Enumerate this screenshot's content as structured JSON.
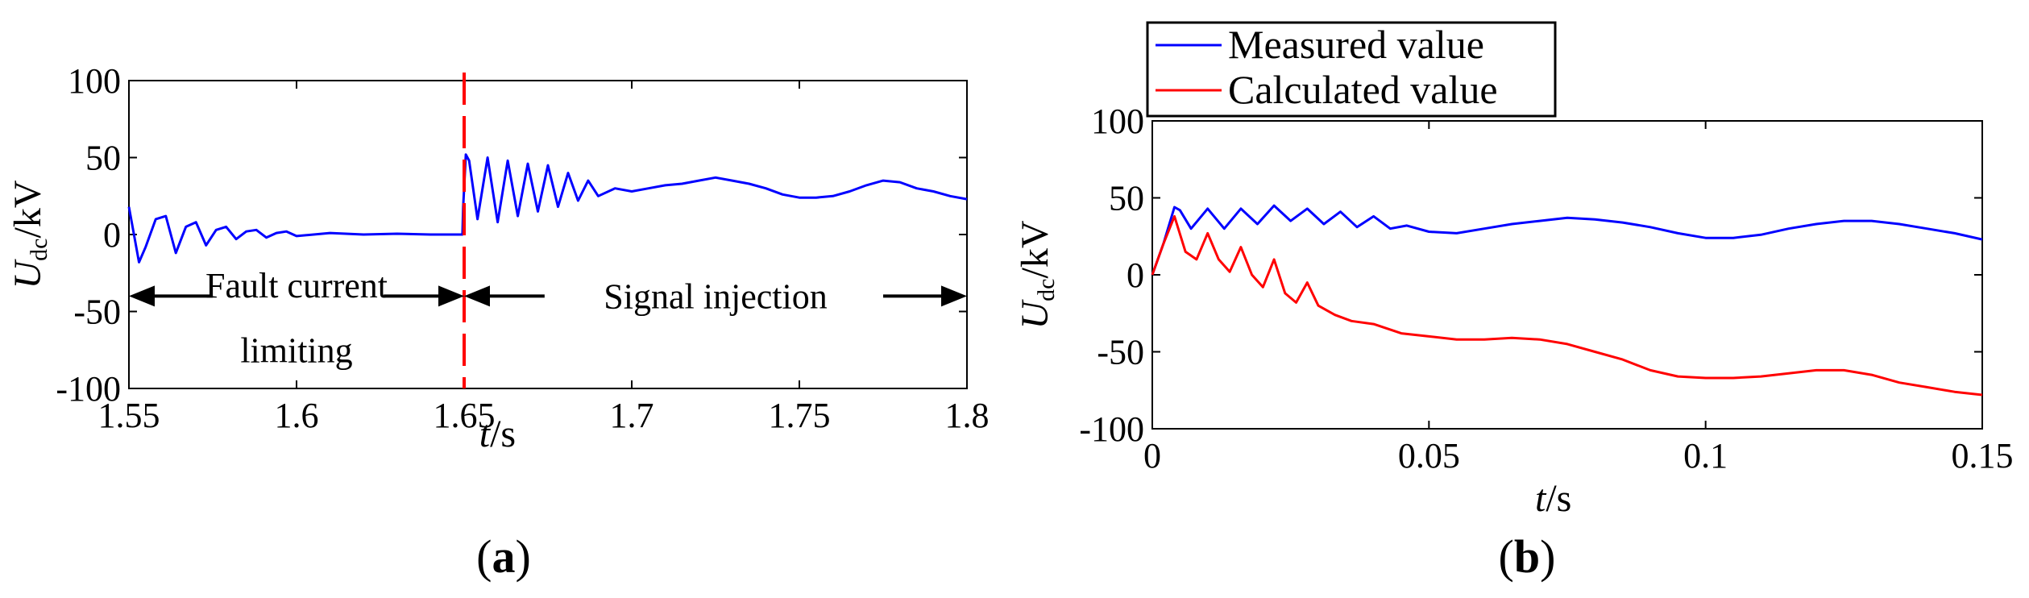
{
  "chart_data": [
    {
      "type": "line",
      "caption": "(a)",
      "xlabel": "t/s",
      "ylabel": "Udc/kV",
      "xlim": [
        1.55,
        1.8
      ],
      "ylim": [
        -100,
        100
      ],
      "x_ticks": [
        1.55,
        1.6,
        1.65,
        1.7,
        1.75,
        1.8
      ],
      "x_tick_labels": [
        "1.55",
        "1.6",
        "1.65",
        "1.7",
        "1.75",
        "1.8"
      ],
      "y_ticks": [
        100,
        50,
        0,
        -50,
        -100
      ],
      "y_tick_labels": [
        "100",
        "50",
        "0",
        "-50",
        "-100"
      ],
      "grid": false,
      "series": [
        {
          "color": "#0000ff",
          "x": [
            1.55,
            1.553,
            1.555,
            1.558,
            1.561,
            1.564,
            1.567,
            1.57,
            1.573,
            1.576,
            1.579,
            1.582,
            1.585,
            1.588,
            1.591,
            1.594,
            1.597,
            1.6,
            1.61,
            1.62,
            1.63,
            1.64,
            1.6495,
            1.6497,
            1.6505,
            1.6515,
            1.654,
            1.657,
            1.66,
            1.663,
            1.666,
            1.669,
            1.672,
            1.675,
            1.678,
            1.681,
            1.684,
            1.687,
            1.69,
            1.695,
            1.7,
            1.705,
            1.71,
            1.715,
            1.72,
            1.725,
            1.73,
            1.735,
            1.74,
            1.745,
            1.75,
            1.755,
            1.76,
            1.765,
            1.77,
            1.775,
            1.78,
            1.785,
            1.79,
            1.795,
            1.8
          ],
          "y": [
            18,
            -18,
            -8,
            10,
            12,
            -12,
            5,
            8,
            -7,
            3,
            5,
            -3,
            2,
            3,
            -2,
            1,
            2,
            -1,
            1,
            0,
            0.5,
            0,
            0,
            18,
            52,
            48,
            10,
            50,
            8,
            48,
            12,
            46,
            15,
            45,
            18,
            40,
            22,
            35,
            25,
            30,
            28,
            30,
            32,
            33,
            35,
            37,
            35,
            33,
            30,
            26,
            24,
            24,
            25,
            28,
            32,
            35,
            34,
            30,
            28,
            25,
            23
          ]
        }
      ],
      "annotations": [
        {
          "text": "Fault current",
          "x": 1.6,
          "y": -33
        },
        {
          "text": "limiting",
          "x": 1.6,
          "y": -75
        },
        {
          "text": "Signal injection",
          "x": 1.725,
          "y": -40
        }
      ],
      "arrows": [
        {
          "from_x": 1.575,
          "to_x": 1.55,
          "y": -40
        },
        {
          "from_x": 1.626,
          "to_x": 1.65,
          "y": -40
        },
        {
          "from_x": 1.674,
          "to_x": 1.65,
          "y": -40
        },
        {
          "from_x": 1.775,
          "to_x": 1.8,
          "y": -40
        }
      ],
      "vertical_marker": {
        "x": 1.65,
        "color": "#ff0000",
        "style": "dashed"
      }
    },
    {
      "type": "line",
      "caption": "(b)",
      "xlabel": "t/s",
      "ylabel": "Udc/kV",
      "xlim": [
        0,
        0.15
      ],
      "ylim": [
        -100,
        100
      ],
      "x_ticks": [
        0,
        0.05,
        0.1,
        0.15
      ],
      "x_tick_labels": [
        "0",
        "0.05",
        "0.1",
        "0.15"
      ],
      "y_ticks": [
        100,
        50,
        0,
        -50,
        -100
      ],
      "y_tick_labels": [
        "100",
        "50",
        "0",
        "-50",
        "-100"
      ],
      "grid": false,
      "legend": {
        "placement": "top-left, above axes"
      },
      "series": [
        {
          "name": "Measured value",
          "color": "#0000ff",
          "x": [
            0,
            0.002,
            0.004,
            0.005,
            0.007,
            0.01,
            0.013,
            0.016,
            0.019,
            0.022,
            0.025,
            0.028,
            0.031,
            0.034,
            0.037,
            0.04,
            0.043,
            0.046,
            0.05,
            0.055,
            0.06,
            0.065,
            0.07,
            0.075,
            0.08,
            0.085,
            0.09,
            0.095,
            0.1,
            0.105,
            0.11,
            0.115,
            0.12,
            0.125,
            0.13,
            0.135,
            0.14,
            0.145,
            0.15
          ],
          "y": [
            0,
            20,
            44,
            42,
            30,
            43,
            30,
            43,
            33,
            45,
            35,
            43,
            33,
            41,
            31,
            38,
            30,
            32,
            28,
            27,
            30,
            33,
            35,
            37,
            36,
            34,
            31,
            27,
            24,
            24,
            26,
            30,
            33,
            35,
            35,
            33,
            30,
            27,
            23
          ]
        },
        {
          "name": "Calculated value",
          "color": "#ff0000",
          "x": [
            0,
            0.002,
            0.004,
            0.006,
            0.008,
            0.01,
            0.012,
            0.014,
            0.016,
            0.018,
            0.02,
            0.022,
            0.024,
            0.026,
            0.028,
            0.03,
            0.033,
            0.036,
            0.04,
            0.045,
            0.05,
            0.055,
            0.06,
            0.065,
            0.07,
            0.075,
            0.08,
            0.085,
            0.09,
            0.095,
            0.1,
            0.105,
            0.11,
            0.115,
            0.12,
            0.125,
            0.13,
            0.135,
            0.14,
            0.145,
            0.15
          ],
          "y": [
            0,
            20,
            38,
            15,
            10,
            27,
            10,
            2,
            18,
            0,
            -8,
            10,
            -12,
            -18,
            -5,
            -20,
            -26,
            -30,
            -32,
            -38,
            -40,
            -42,
            -42,
            -41,
            -42,
            -45,
            -50,
            -55,
            -62,
            -66,
            -67,
            -67,
            -66,
            -64,
            -62,
            -62,
            -65,
            -70,
            -73,
            -76,
            -78
          ]
        }
      ]
    }
  ]
}
